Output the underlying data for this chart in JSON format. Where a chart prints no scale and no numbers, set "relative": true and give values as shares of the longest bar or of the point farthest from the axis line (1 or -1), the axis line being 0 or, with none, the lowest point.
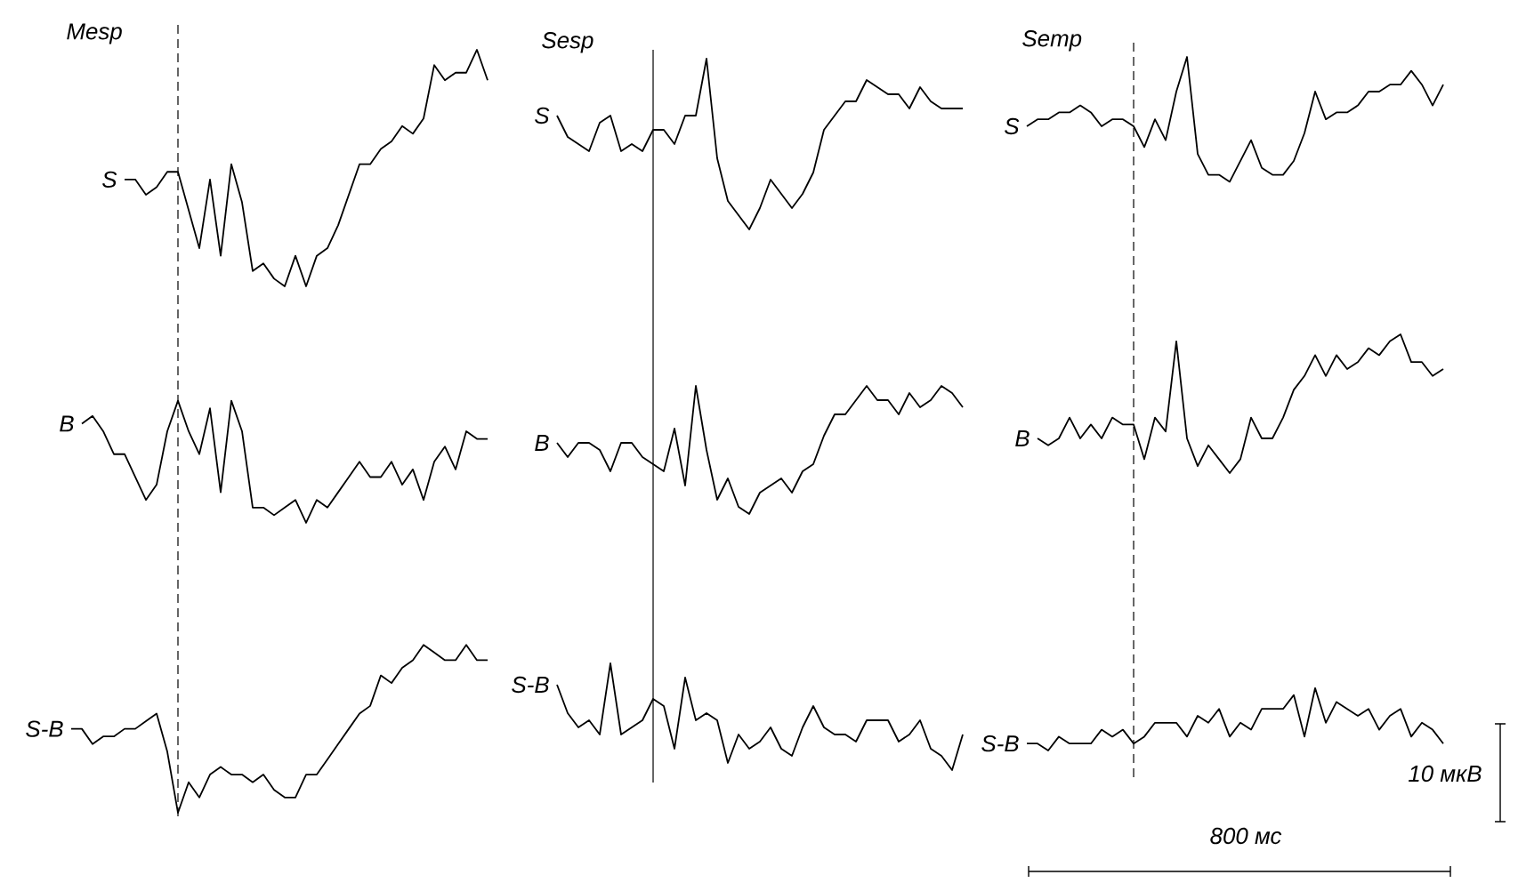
{
  "chart_data": [
    {
      "type": "line",
      "title": "Mesp",
      "relative": true,
      "categories": [
        null,
        null,
        null,
        null,
        null,
        null,
        null,
        null,
        null,
        null,
        null,
        null,
        null,
        null,
        null,
        null,
        null,
        null,
        null,
        null,
        null,
        null,
        null,
        null,
        null,
        null,
        null,
        null,
        null,
        null,
        null,
        null,
        null,
        null,
        null,
        null,
        null,
        null,
        null,
        null
      ],
      "series": [
        {
          "name": "S",
          "color": "#000000",
          "values": [
            null,
            null,
            null,
            null,
            null,
            0.83,
            0.83,
            0.81,
            0.82,
            0.84,
            0.84,
            0.79,
            0.74,
            0.83,
            0.73,
            0.85,
            0.8,
            0.71,
            0.72,
            0.7,
            0.69,
            0.73,
            0.69,
            0.73,
            0.74,
            0.77,
            0.81,
            0.85,
            0.85,
            0.87,
            0.88,
            0.9,
            0.89,
            0.91,
            0.98,
            0.96,
            0.97,
            0.97,
            1.0,
            0.96
          ]
        },
        {
          "name": "B",
          "color": "#000000",
          "values": [
            null,
            0.51,
            0.52,
            0.5,
            0.47,
            0.47,
            0.44,
            0.41,
            0.43,
            0.5,
            0.54,
            0.5,
            0.47,
            0.53,
            0.42,
            0.54,
            0.5,
            0.4,
            0.4,
            0.39,
            0.4,
            0.41,
            0.38,
            0.41,
            0.4,
            0.42,
            0.44,
            0.46,
            0.44,
            0.44,
            0.46,
            0.43,
            0.45,
            0.41,
            0.46,
            0.48,
            0.45,
            0.5,
            0.49,
            0.49
          ]
        },
        {
          "name": "S-B",
          "color": "#000000",
          "values": [
            0.11,
            0.11,
            0.09,
            0.1,
            0.1,
            0.11,
            0.11,
            0.12,
            0.13,
            0.08,
            0.0,
            0.04,
            0.02,
            0.05,
            0.06,
            0.05,
            0.05,
            0.04,
            0.05,
            0.03,
            0.02,
            0.02,
            0.05,
            0.05,
            0.07,
            0.09,
            0.11,
            0.13,
            0.14,
            0.18,
            0.17,
            0.19,
            0.2,
            0.22,
            0.21,
            0.2,
            0.2,
            0.22,
            0.2,
            0.2
          ]
        }
      ]
    },
    {
      "type": "line",
      "title": "Sesp",
      "relative": true,
      "categories": [
        null,
        null,
        null,
        null,
        null,
        null,
        null,
        null,
        null,
        null,
        null,
        null,
        null,
        null,
        null,
        null,
        null,
        null,
        null,
        null,
        null,
        null,
        null,
        null,
        null,
        null,
        null,
        null,
        null,
        null,
        null,
        null,
        null,
        null,
        null,
        null,
        null,
        null,
        null,
        null
      ],
      "series": [
        {
          "name": "S",
          "color": "#000000",
          "values": [
            null,
            0.92,
            0.89,
            0.88,
            0.87,
            0.91,
            0.92,
            0.87,
            0.88,
            0.87,
            0.9,
            0.9,
            0.88,
            0.92,
            0.92,
            1.0,
            0.86,
            0.8,
            0.78,
            0.76,
            0.79,
            0.83,
            0.81,
            0.79,
            0.81,
            0.84,
            0.9,
            0.92,
            0.94,
            0.94,
            0.97,
            0.96,
            0.95,
            0.95,
            0.93,
            0.96,
            0.94,
            0.93,
            0.93,
            0.93
          ]
        },
        {
          "name": "B",
          "color": "#000000",
          "values": [
            null,
            0.46,
            0.44,
            0.46,
            0.46,
            0.45,
            0.42,
            0.46,
            0.46,
            0.44,
            0.43,
            0.42,
            0.48,
            0.4,
            0.54,
            0.45,
            0.38,
            0.41,
            0.37,
            0.36,
            0.39,
            0.4,
            0.41,
            0.39,
            0.42,
            0.43,
            0.47,
            0.5,
            0.5,
            0.52,
            0.54,
            0.52,
            0.52,
            0.5,
            0.53,
            0.51,
            0.52,
            0.54,
            0.53,
            0.51
          ]
        },
        {
          "name": "S-B",
          "color": "#000000",
          "values": [
            null,
            0.12,
            0.08,
            0.06,
            0.07,
            0.05,
            0.15,
            0.05,
            0.06,
            0.07,
            0.1,
            0.09,
            0.03,
            0.13,
            0.07,
            0.08,
            0.07,
            0.01,
            0.05,
            0.03,
            0.04,
            0.06,
            0.03,
            0.02,
            0.06,
            0.09,
            0.06,
            0.05,
            0.05,
            0.04,
            0.07,
            0.07,
            0.07,
            0.04,
            0.05,
            0.07,
            0.03,
            0.02,
            0.0,
            0.05
          ]
        }
      ]
    },
    {
      "type": "line",
      "title": "Semp",
      "relative": true,
      "categories": [
        null,
        null,
        null,
        null,
        null,
        null,
        null,
        null,
        null,
        null,
        null,
        null,
        null,
        null,
        null,
        null,
        null,
        null,
        null,
        null,
        null,
        null,
        null,
        null,
        null,
        null,
        null,
        null,
        null,
        null,
        null,
        null,
        null,
        null,
        null,
        null,
        null,
        null,
        null,
        null
      ],
      "series": [
        {
          "name": "S",
          "color": "#000000",
          "values": [
            0.9,
            0.91,
            0.91,
            0.92,
            0.92,
            0.93,
            0.92,
            0.9,
            0.91,
            0.91,
            0.9,
            0.87,
            0.91,
            0.88,
            0.95,
            1.0,
            0.86,
            0.83,
            0.83,
            0.82,
            0.85,
            0.88,
            0.84,
            0.83,
            0.83,
            0.85,
            0.89,
            0.95,
            0.91,
            0.92,
            0.92,
            0.93,
            0.95,
            0.95,
            0.96,
            0.96,
            0.98,
            0.96,
            0.93,
            0.96
          ]
        },
        {
          "name": "B",
          "color": "#000000",
          "values": [
            null,
            0.45,
            0.44,
            0.45,
            0.48,
            0.45,
            0.47,
            0.45,
            0.48,
            0.47,
            0.47,
            0.42,
            0.48,
            0.46,
            0.59,
            0.45,
            0.41,
            0.44,
            0.42,
            0.4,
            0.42,
            0.48,
            0.45,
            0.45,
            0.48,
            0.52,
            0.54,
            0.57,
            0.54,
            0.57,
            0.55,
            0.56,
            0.58,
            0.57,
            0.59,
            0.6,
            0.56,
            0.56,
            0.54,
            0.55
          ]
        },
        {
          "name": "S-B",
          "color": "#000000",
          "values": [
            0.01,
            0.01,
            0.0,
            0.02,
            0.01,
            0.01,
            0.01,
            0.03,
            0.02,
            0.03,
            0.01,
            0.02,
            0.04,
            0.04,
            0.04,
            0.02,
            0.05,
            0.04,
            0.06,
            0.02,
            0.04,
            0.03,
            0.06,
            0.06,
            0.06,
            0.08,
            0.02,
            0.09,
            0.04,
            0.07,
            0.06,
            0.05,
            0.06,
            0.03,
            0.05,
            0.06,
            0.02,
            0.04,
            0.03,
            0.01
          ]
        }
      ]
    },
    {
      "type": "other",
      "annotations": [
        "10 мкВ",
        "800 мс"
      ]
    }
  ]
}
